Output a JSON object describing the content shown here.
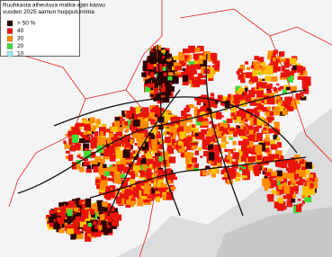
{
  "legend": {
    "title": [
      "Ruuhkasta aiheutuva matka-ajan kasvu",
      "vuoden 2025 aamun huipputunnina"
    ],
    "items": [
      {
        "label": "> 50 %",
        "color": "#2b0000"
      },
      {
        "label": "40",
        "color": "#e8140c"
      },
      {
        "label": "30",
        "color": "#ff8c00"
      },
      {
        "label": "20",
        "color": "#3cdc3c"
      },
      {
        "label": "10",
        "color": "#9ee8f0"
      }
    ]
  }
}
